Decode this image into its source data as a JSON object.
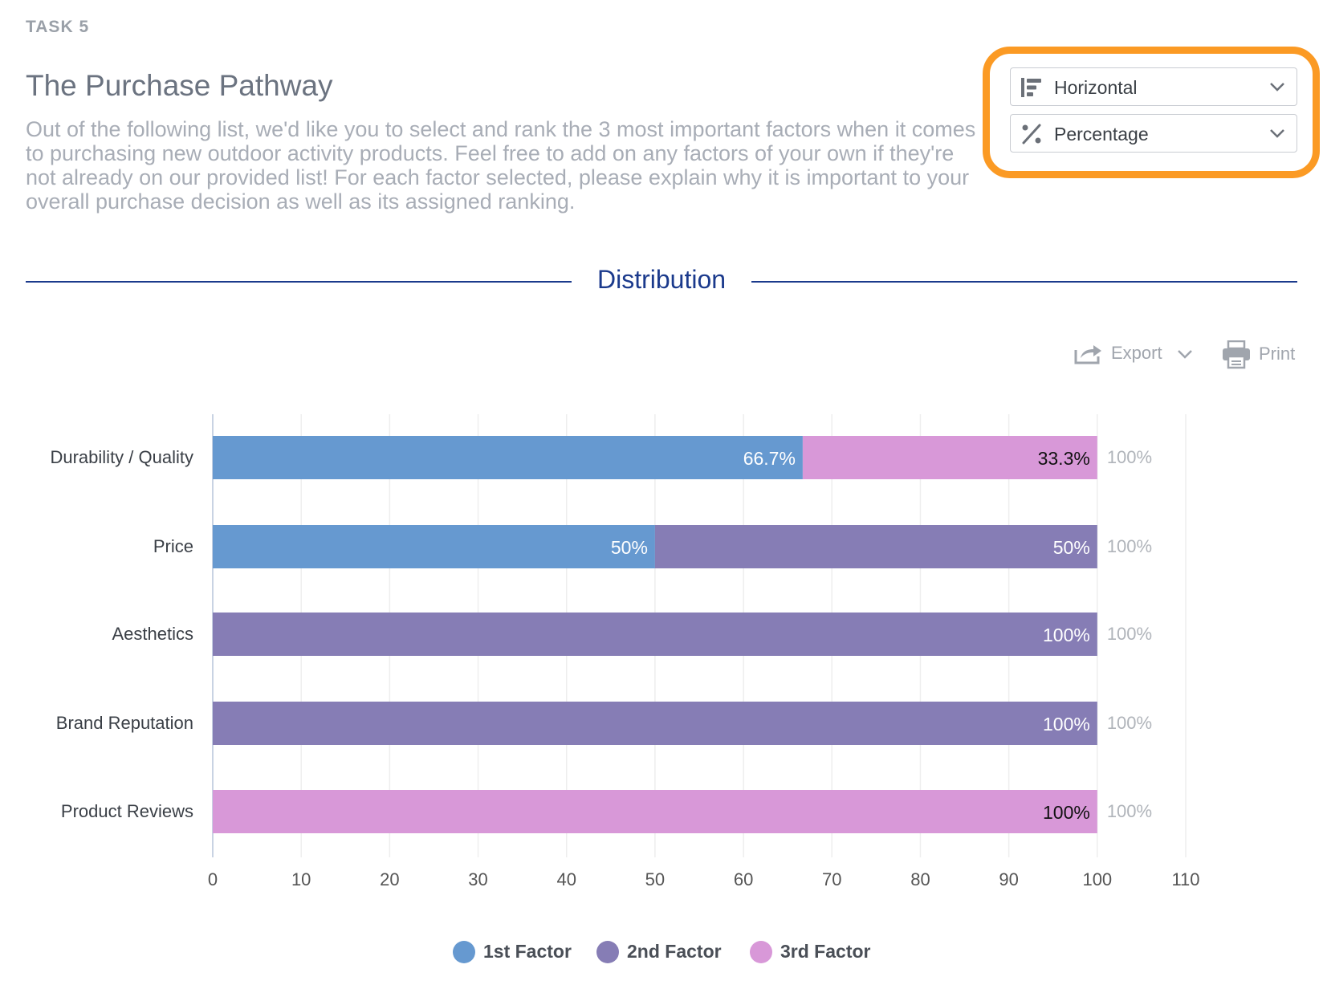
{
  "header": {
    "task_label": "TASK 5",
    "title": "The Purchase Pathway",
    "description": "Out of the following list, we'd like you to select and rank the 3 most important factors when it comes to purchasing new outdoor activity products. Feel free to add on any factors of your own if they're not already on our provided list!  For each factor selected, please explain why it is important to your overall purchase decision as well as its assigned ranking."
  },
  "controls": {
    "orientation": {
      "value": "Horizontal",
      "icon": "horizontal-bars-icon"
    },
    "display": {
      "value": "Percentage",
      "icon": "percent-icon"
    },
    "highlight_color": "#fb9a24"
  },
  "section": {
    "title": "Distribution"
  },
  "toolbar": {
    "export_label": "Export",
    "print_label": "Print"
  },
  "colors": {
    "series1": "#6699d0",
    "series2": "#867db5",
    "series3": "#d898d8",
    "divider": "#1b3a8c"
  },
  "chart_data": {
    "type": "bar",
    "orientation": "horizontal",
    "stacked": true,
    "categories": [
      "Durability / Quality",
      "Price",
      "Aesthetics",
      "Brand Reputation",
      "Product Reviews"
    ],
    "series": [
      {
        "name": "1st Factor",
        "values": [
          66.7,
          50,
          0,
          0,
          0
        ],
        "labels": [
          "66.7%",
          "50%",
          "",
          "",
          ""
        ]
      },
      {
        "name": "2nd Factor",
        "values": [
          0,
          50,
          100,
          100,
          0
        ],
        "labels": [
          "",
          "50%",
          "100%",
          "100%",
          ""
        ]
      },
      {
        "name": "3rd Factor",
        "values": [
          33.3,
          0,
          0,
          0,
          100
        ],
        "labels": [
          "33.3%",
          "",
          "",
          "",
          "100%"
        ]
      }
    ],
    "totals": [
      "100%",
      "100%",
      "100%",
      "100%",
      "100%"
    ],
    "xlim": [
      0,
      110
    ],
    "xticks": [
      0,
      10,
      20,
      30,
      40,
      50,
      60,
      70,
      80,
      90,
      100,
      110
    ],
    "grid": true,
    "legend_position": "bottom"
  }
}
